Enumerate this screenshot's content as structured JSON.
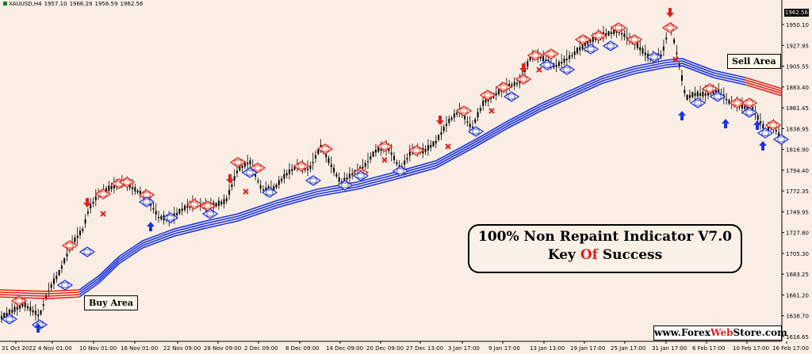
{
  "header": {
    "symbol": "XAUUSD,H4",
    "open": "1957.10",
    "high": "1966.29",
    "low": "1956.59",
    "close": "1962.56"
  },
  "current_price": "1962.56",
  "price_axis": [
    "1950.10",
    "1927.95",
    "1905.55",
    "1883.40",
    "1861.45",
    "1838.95",
    "1816.90",
    "1794.40",
    "1772.35",
    "1749.95",
    "1727.80",
    "1705.30",
    "1683.25",
    "1661.20",
    "1638.70",
    "1616.65"
  ],
  "time_axis": [
    "31 Oct 2022",
    "4 Nov 01:00",
    "10 Nov 01:00",
    "16 Nov 01:00",
    "22 Nov 09:00",
    "28 Nov 09:00",
    "2 Dec 09:00",
    "8 Dec 09:00",
    "14 Dec 09:00",
    "20 Dec 09:00",
    "27 Dec 13:00",
    "3 Jan 17:00",
    "9 Jan 17:00",
    "13 Jan 13:00",
    "19 Jan 17:00",
    "25 Jan 17:00",
    "31 Jan 17:00",
    "6 Feb 17:00",
    "10 Feb 17:00",
    "16 Feb 17:00"
  ],
  "annotations": {
    "buy_area": "Buy Area",
    "sell_area": "Sell Area"
  },
  "promo": {
    "title": "100% Non Repaint Indicator V7.0",
    "subtitle_part1": "Key ",
    "subtitle_part2": "Of",
    "subtitle_part3": " Success"
  },
  "website": {
    "part1": "www.Forex",
    "part2": "Web",
    "part3": "Store.com"
  },
  "colors": {
    "background": "#faeee4",
    "bull_ma": "#1a33e6",
    "bear_ma": "#e8201c",
    "buy_signal": "#1a33e6",
    "sell_signal": "#e0201c",
    "candles": "#000000"
  }
}
